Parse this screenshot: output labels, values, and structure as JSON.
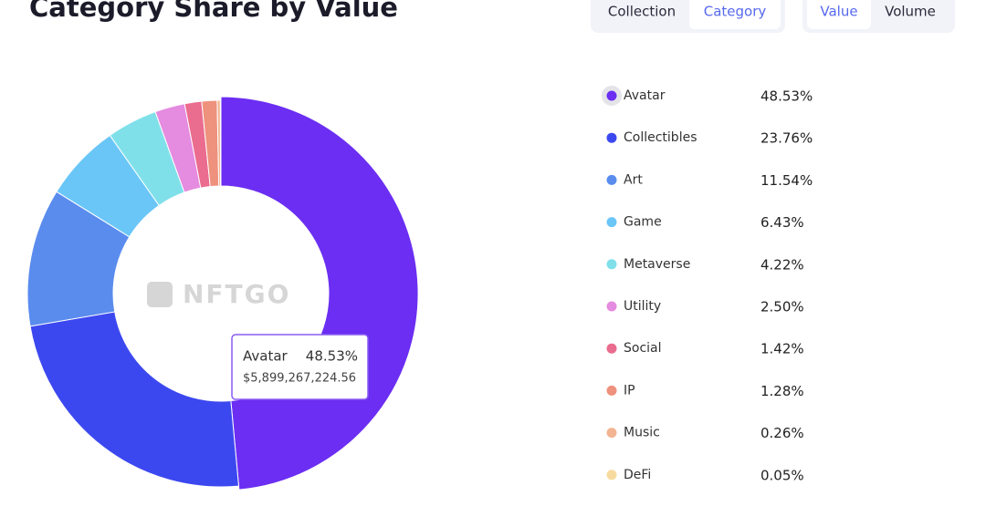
{
  "controls": {
    "group_by": [
      "Collection",
      "Category"
    ],
    "measure": [
      "Value",
      "Volume"
    ]
  },
  "chart_data": {
    "type": "pie",
    "title": "Category Share by Value",
    "watermark": "NFTGO",
    "categories": [
      "Avatar",
      "Collectibles",
      "Art",
      "Game",
      "Metaverse",
      "Utility",
      "Social",
      "IP",
      "Music",
      "DeFi"
    ],
    "values": [
      48.53,
      23.76,
      11.54,
      6.43,
      4.22,
      2.5,
      1.42,
      1.28,
      0.26,
      0.05
    ],
    "value_labels": [
      "48.53%",
      "23.76%",
      "11.54%",
      "6.43%",
      "4.22%",
      "2.50%",
      "1.42%",
      "1.28%",
      "0.26%",
      "0.05%"
    ],
    "colors": [
      "#6b2ef2",
      "#3c48ef",
      "#5a8cee",
      "#6ac6f7",
      "#80e0ea",
      "#e58be0",
      "#ea6c8e",
      "#ee917d",
      "#f2b491",
      "#f7da9f"
    ],
    "tooltip": {
      "value": 5899267224.56,
      "label": "$5,899,267,224.56"
    }
  }
}
